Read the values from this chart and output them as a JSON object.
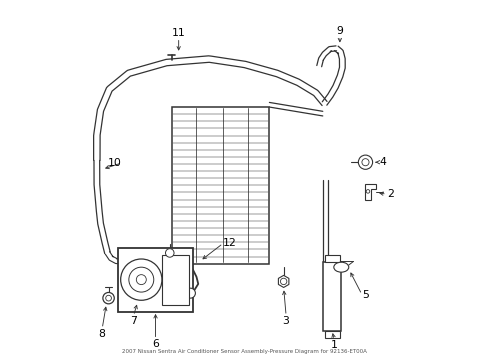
{
  "title": "2007 Nissan Sentra Air Conditioner Sensor Assembly-Pressure Diagram for 92136-ET00A",
  "bg_color": "#ffffff",
  "line_color": "#333333",
  "text_color": "#000000",
  "fig_width": 4.89,
  "fig_height": 3.6,
  "dpi": 100
}
